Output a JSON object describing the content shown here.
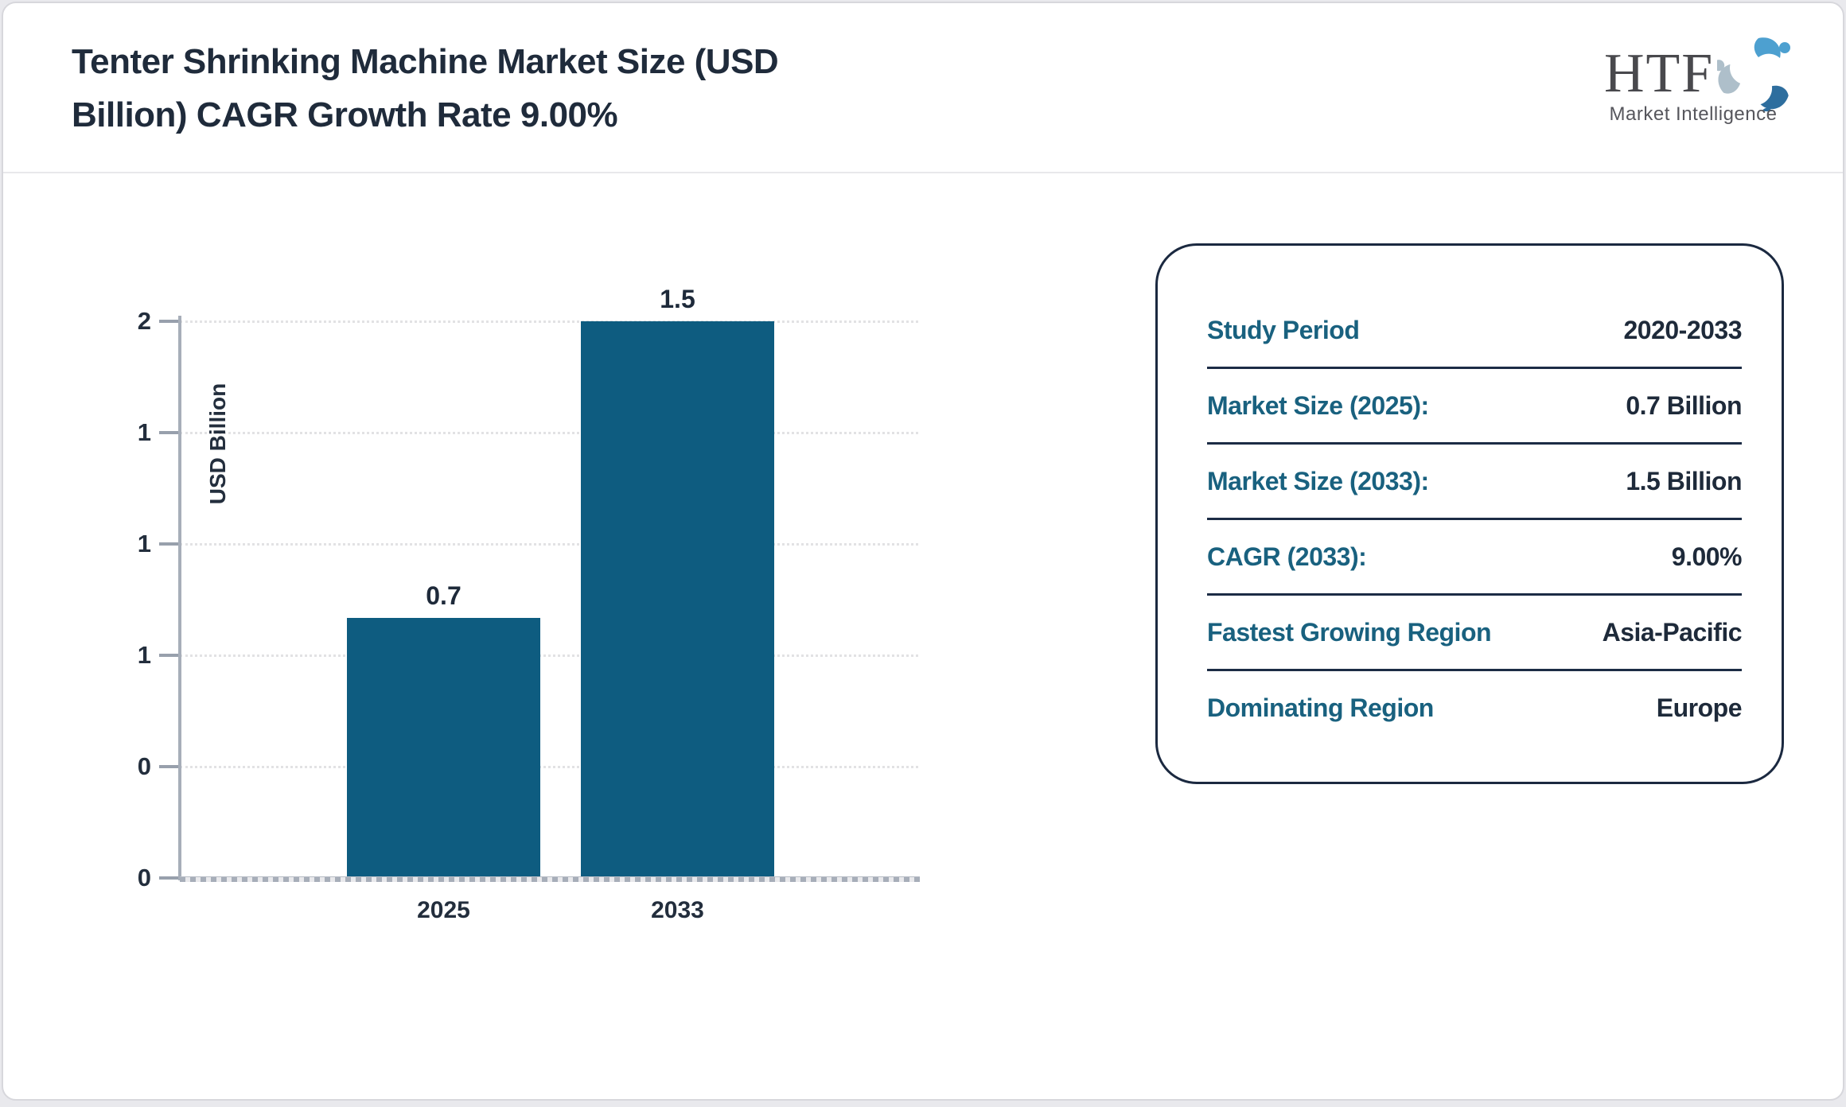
{
  "header": {
    "title_lines": [
      "Tenter Shrinking Machine Market Size (USD",
      "Billion) CAGR Growth Rate 9.00%"
    ],
    "logo": {
      "text": "HTF",
      "subtext": "Market Intelligence",
      "swirl_colors": [
        "#4da0d0",
        "#2e6e9e",
        "#aebfca"
      ]
    }
  },
  "chart_data": {
    "type": "bar",
    "title": "Tenter Shrinking Machine Market Size (USD Billion) CAGR Growth Rate 9.00%",
    "categories": [
      "2025",
      "2033"
    ],
    "values": [
      0.7,
      1.5
    ],
    "bar_labels": [
      "0.7",
      "1.5"
    ],
    "xlabel": "",
    "ylabel": "USD Billion",
    "ylim": [
      0,
      1.5
    ],
    "y_tick_values": [
      1.5,
      1.2,
      0.9,
      0.6,
      0.3,
      0
    ],
    "y_tick_labels": [
      "2",
      "1",
      "1",
      "1",
      "0",
      "0"
    ],
    "grid": true,
    "bar_color": "#0e5c80",
    "legend": "none"
  },
  "info_card": {
    "rows": [
      {
        "label": "Study Period",
        "value": "2020-2033"
      },
      {
        "label": "Market Size (2025):",
        "value": "0.7 Billion"
      },
      {
        "label": "Market Size (2033):",
        "value": "1.5 Billion"
      },
      {
        "label": "CAGR (2033):",
        "value": "9.00%"
      },
      {
        "label": "Fastest Growing Region",
        "value": "Asia-Pacific"
      },
      {
        "label": "Dominating Region",
        "value": "Europe"
      }
    ],
    "label_color": "#19617f",
    "value_color": "#1e2a3a"
  }
}
